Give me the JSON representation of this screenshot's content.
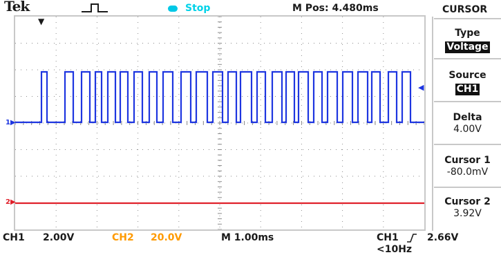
{
  "header": {
    "brand": "Tek",
    "trigger_icon": "trigger-pulse-icon",
    "run_status": "Stop",
    "horizontal_position": "M Pos: 4.480ms"
  },
  "markers": {
    "ch1": "1",
    "ch2": "2"
  },
  "side_menu": {
    "title": "CURSOR",
    "items": [
      {
        "label": "Type",
        "value": "Voltage",
        "style": "inverted"
      },
      {
        "label": "Source",
        "value": "CH1",
        "style": "inverted"
      },
      {
        "label": "Delta",
        "value": "4.00V",
        "style": "plain"
      },
      {
        "label": "Cursor 1",
        "value": "-80.0mV",
        "style": "plain"
      },
      {
        "label": "Cursor 2",
        "value": "3.92V",
        "style": "plain"
      }
    ]
  },
  "status_bar": {
    "ch1_label": "CH1",
    "ch1_scale": "2.00V",
    "ch2_label": "CH2",
    "ch2_scale": "20.0V",
    "timebase": "M 1.00ms",
    "trigger_source": "CH1",
    "trigger_slope_icon": "rising-edge-icon",
    "trigger_level": "2.66V",
    "trigger_freq": "<10Hz"
  },
  "colors": {
    "ch1_trace": "#1d35e0",
    "ch2_trace": "#e0202a",
    "ch2_text": "#ff9a00",
    "run_status": "#00d2e8",
    "grid": "#8a8a8a"
  }
}
